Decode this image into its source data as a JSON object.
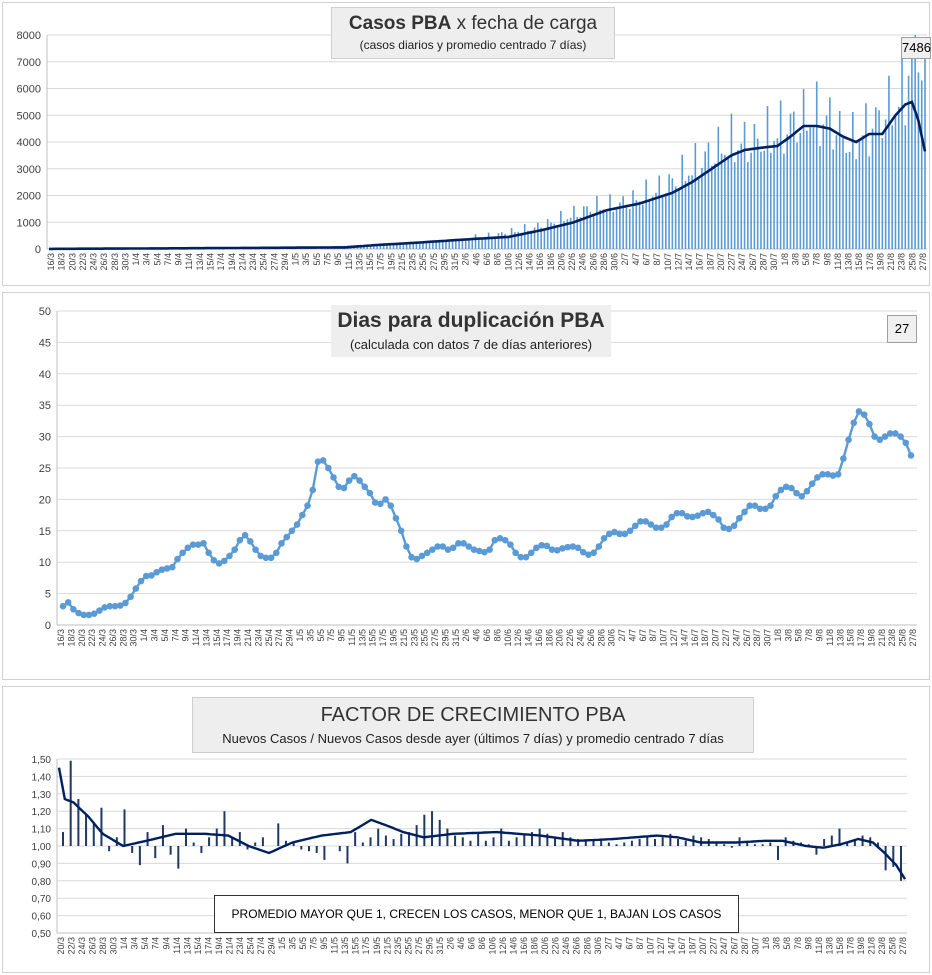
{
  "colors": {
    "bars1": "#5b9bd5",
    "avg": "#002060",
    "line2": "#5b9bd5",
    "bars3": "#1f3864",
    "grid": "#d9d9d9",
    "axis_text": "#404040"
  },
  "chart_data": [
    {
      "type": "bar",
      "title_bold": "Casos  PBA",
      "title_rest": " x fecha  de  carga",
      "subtitle": "(casos diarios y promedio  centrado  7 días)",
      "callout": "7486",
      "ylim": [
        0,
        8000
      ],
      "yticks": [
        "0",
        "1000",
        "2000",
        "3000",
        "4000",
        "5000",
        "6000",
        "7000",
        "8000"
      ],
      "xtick_labels": [
        "16/3",
        "18/3",
        "20/3",
        "22/3",
        "24/3",
        "26/3",
        "28/3",
        "30/3",
        "1/4",
        "3/4",
        "5/4",
        "7/4",
        "9/4",
        "11/4",
        "13/4",
        "15/4",
        "17/4",
        "19/4",
        "21/4",
        "23/4",
        "25/4",
        "27/4",
        "29/4",
        "1/5",
        "3/5",
        "5/5",
        "7/5",
        "9/5",
        "11/5",
        "13/5",
        "15/5",
        "17/5",
        "19/5",
        "21/5",
        "23/5",
        "25/5",
        "27/5",
        "29/5",
        "31/5",
        "2/6",
        "4/6",
        "6/6",
        "8/6",
        "10/6",
        "12/6",
        "14/6",
        "16/6",
        "18/6",
        "20/6",
        "22/6",
        "24/6",
        "26/6",
        "28/6",
        "30/6",
        "2/7",
        "4/7",
        "6/7",
        "8/7",
        "10/7",
        "12/7",
        "14/7",
        "16/7",
        "18/7",
        "20/7",
        "22/7",
        "24/7",
        "26/7",
        "28/7",
        "30/7",
        "1/8",
        "3/8",
        "5/8",
        "7/8",
        "9/8",
        "11/8",
        "13/8",
        "15/8",
        "17/8",
        "19/8",
        "21/8",
        "23/8",
        "25/8",
        "27/8"
      ],
      "series": [
        {
          "name": "casos diarios",
          "kind": "bar",
          "anchors": [
            [
              0,
              4
            ],
            [
              6,
              10
            ],
            [
              14,
              15
            ],
            [
              18,
              25
            ],
            [
              25,
              30
            ],
            [
              32,
              40
            ],
            [
              38,
              45
            ],
            [
              45,
              55
            ],
            [
              52,
              60
            ],
            [
              60,
              75
            ],
            [
              66,
              60
            ],
            [
              72,
              80
            ],
            [
              80,
              90
            ],
            [
              90,
              120
            ],
            [
              96,
              160
            ],
            [
              105,
              230
            ],
            [
              112,
              250
            ],
            [
              118,
              320
            ],
            [
              124,
              380
            ],
            [
              130,
              430
            ],
            [
              136,
              520
            ],
            [
              142,
              650
            ],
            [
              148,
              800
            ],
            [
              154,
              1000
            ],
            [
              160,
              1300
            ],
            [
              166,
              1550
            ],
            [
              172,
              1600
            ],
            [
              178,
              1800
            ],
            [
              184,
              2100
            ],
            [
              190,
              2500
            ],
            [
              196,
              3000
            ],
            [
              202,
              3600
            ],
            [
              208,
              3900
            ],
            [
              214,
              3950
            ],
            [
              220,
              4200
            ],
            [
              226,
              4600
            ],
            [
              232,
              4900
            ],
            [
              238,
              4800
            ],
            [
              244,
              3900
            ],
            [
              250,
              4500
            ],
            [
              256,
              5200
            ],
            [
              260,
              5600
            ],
            [
              264,
              7486
            ],
            [
              267,
              7486
            ]
          ]
        },
        {
          "name": "promedio centrado 7 días",
          "kind": "line",
          "anchors": [
            [
              0,
              5
            ],
            [
              30,
              20
            ],
            [
              60,
              40
            ],
            [
              90,
              60
            ],
            [
              100,
              150
            ],
            [
              110,
              220
            ],
            [
              120,
              300
            ],
            [
              130,
              380
            ],
            [
              140,
              450
            ],
            [
              150,
              700
            ],
            [
              160,
              1000
            ],
            [
              170,
              1450
            ],
            [
              180,
              1700
            ],
            [
              190,
              2100
            ],
            [
              196,
              2500
            ],
            [
              202,
              3000
            ],
            [
              208,
              3500
            ],
            [
              212,
              3700
            ],
            [
              218,
              3800
            ],
            [
              222,
              3850
            ],
            [
              226,
              4200
            ],
            [
              230,
              4600
            ],
            [
              234,
              4600
            ],
            [
              238,
              4500
            ],
            [
              242,
              4200
            ],
            [
              246,
              4000
            ],
            [
              250,
              4300
            ],
            [
              254,
              4300
            ],
            [
              258,
              5000
            ],
            [
              261,
              5400
            ],
            [
              263,
              5500
            ],
            [
              265,
              4800
            ],
            [
              267,
              3650
            ]
          ]
        }
      ]
    },
    {
      "type": "line",
      "title": "Dias para duplicación PBA",
      "subtitle": "(calculada con datos 7 de días anteriores)",
      "callout": "27",
      "ylim": [
        0,
        50
      ],
      "yticks": [
        "0",
        "5",
        "10",
        "15",
        "20",
        "25",
        "30",
        "35",
        "40",
        "45",
        "50"
      ],
      "xtick_labels": [
        "16/3",
        "18/3",
        "20/3",
        "22/3",
        "24/3",
        "26/3",
        "28/3",
        "30/3",
        "1/4",
        "3/4",
        "5/4",
        "7/4",
        "9/4",
        "11/4",
        "13/4",
        "15/4",
        "17/4",
        "19/4",
        "21/4",
        "23/4",
        "25/4",
        "27/4",
        "29/4",
        "1/5",
        "3/5",
        "5/5",
        "7/5",
        "9/5",
        "11/5",
        "13/5",
        "15/5",
        "17/5",
        "19/5",
        "21/5",
        "23/5",
        "25/5",
        "27/5",
        "29/5",
        "31/5",
        "2/6",
        "4/6",
        "6/6",
        "8/6",
        "10/6",
        "12/6",
        "14/6",
        "16/6",
        "18/6",
        "20/6",
        "22/6",
        "24/6",
        "26/6",
        "28/6",
        "30/6",
        "2/7",
        "4/7",
        "6/7",
        "8/7",
        "10/7",
        "12/7",
        "14/7",
        "16/7",
        "18/7",
        "20/7",
        "22/7",
        "24/7",
        "26/7",
        "28/7",
        "30/7",
        "1/8",
        "3/8",
        "5/8",
        "7/8",
        "9/8",
        "11/8",
        "13/8",
        "15/8",
        "17/8",
        "19/8",
        "21/8",
        "23/8",
        "25/8",
        "27/8"
      ],
      "series": [
        {
          "name": "dias para duplicacion",
          "values": [
            3,
            3.6,
            2.5,
            1.9,
            1.6,
            1.6,
            1.8,
            2.3,
            2.8,
            3,
            3,
            3.1,
            3.5,
            4.5,
            5.8,
            7,
            7.8,
            7.9,
            8.4,
            8.8,
            9,
            9.2,
            10.5,
            11.5,
            12.3,
            12.8,
            12.8,
            13,
            11.5,
            10.3,
            9.8,
            10.2,
            11,
            12,
            13.5,
            14.3,
            13.3,
            12,
            11,
            10.7,
            10.7,
            11.5,
            13,
            14,
            15,
            16,
            17.5,
            19,
            21.5,
            26,
            26.2,
            25,
            23.5,
            22,
            21.8,
            23,
            23.7,
            23,
            22,
            21,
            19.5,
            19.3,
            20,
            19,
            17,
            15,
            12.5,
            10.8,
            10.5,
            11,
            11.5,
            12,
            12.5,
            12.5,
            12,
            12.3,
            13,
            13,
            12.5,
            12,
            11.8,
            11.6,
            12,
            13.5,
            13.8,
            13.5,
            12.8,
            11.5,
            10.8,
            10.8,
            11.5,
            12.3,
            12.7,
            12.6,
            12,
            11.9,
            12.2,
            12.4,
            12.5,
            12.3,
            11.6,
            11.2,
            11.5,
            12.5,
            13.8,
            14.5,
            14.8,
            14.5,
            14.5,
            15,
            15.8,
            16.5,
            16.5,
            16,
            15.5,
            15.5,
            16,
            17.2,
            17.8,
            17.8,
            17.3,
            17.2,
            17.4,
            17.8,
            18,
            17.5,
            16.8,
            15.5,
            15.3,
            15.8,
            17,
            18,
            19,
            19,
            18.5,
            18.5,
            19,
            20.5,
            21.5,
            22,
            21.8,
            21,
            20.5,
            21.3,
            22.5,
            23.5,
            24,
            24,
            23.8,
            24,
            26.5,
            29.5,
            32.2,
            34,
            33.5,
            32,
            30,
            29.5,
            30,
            30.5,
            30.5,
            30,
            29,
            27
          ]
        }
      ]
    },
    {
      "type": "bar",
      "title": "FACTOR DE CRECIMIENTO PBA",
      "subtitle": "Nuevos Casos  / Nuevos Casos desde ayer (últimos 7 días) y promedio  centrado  7 días",
      "note": "PROMEDIO MAYOR QUE 1, CRECEN LOS CASOS, MENOR QUE 1, BAJAN LOS CASOS",
      "ylim": [
        0.5,
        1.5
      ],
      "yticks": [
        "0,50",
        "0,60",
        "0,70",
        "0,80",
        "0,90",
        "1,00",
        "1,10",
        "1,20",
        "1,30",
        "1,40",
        "1,50"
      ],
      "xtick_labels": [
        "20/3",
        "22/3",
        "24/3",
        "26/3",
        "28/3",
        "30/3",
        "1/4",
        "3/4",
        "5/4",
        "7/4",
        "9/4",
        "11/4",
        "13/4",
        "15/4",
        "17/4",
        "19/4",
        "21/4",
        "23/4",
        "25/4",
        "27/4",
        "29/4",
        "1/5",
        "3/5",
        "5/5",
        "7/5",
        "9/5",
        "11/5",
        "13/5",
        "15/5",
        "17/5",
        "19/5",
        "21/5",
        "23/5",
        "25/5",
        "27/5",
        "29/5",
        "31/5",
        "2/6",
        "4/6",
        "6/6",
        "8/6",
        "10/6",
        "12/6",
        "14/6",
        "16/6",
        "18/6",
        "20/6",
        "22/6",
        "24/6",
        "26/6",
        "28/6",
        "30/6",
        "2/7",
        "4/7",
        "6/7",
        "8/7",
        "10/7",
        "12/7",
        "14/7",
        "16/7",
        "18/7",
        "20/7",
        "22/7",
        "24/7",
        "26/7",
        "28/7",
        "30/7",
        "1/8",
        "3/8",
        "5/8",
        "7/8",
        "9/8",
        "11/8",
        "13/8",
        "15/8",
        "17/8",
        "19/8",
        "21/8",
        "23/8",
        "25/8",
        "27/8"
      ],
      "series": [
        {
          "name": "factor diario",
          "kind": "bar",
          "values": [
            1.08,
            1.49,
            1.27,
            1.18,
            1.13,
            1.22,
            0.97,
            1.05,
            1.21,
            0.96,
            0.89,
            1.08,
            0.93,
            1.12,
            0.95,
            0.87,
            1.1,
            1.02,
            0.96,
            1.05,
            1.1,
            1.2,
            1.05,
            1.08,
            0.98,
            1.02,
            1.05,
            1.0,
            1.13,
            1.03,
            1.02,
            0.98,
            0.97,
            0.96,
            0.92,
            1.0,
            0.97,
            0.9,
            1.08,
            1.02,
            1.05,
            1.1,
            1.06,
            1.04,
            1.07,
            1.08,
            1.12,
            1.18,
            1.2,
            1.15,
            1.1,
            1.06,
            1.05,
            1.03,
            1.08,
            1.03,
            1.05,
            1.1,
            1.03,
            1.05,
            1.07,
            1.08,
            1.1,
            1.07,
            1.05,
            1.08,
            1.05,
            1.04,
            1.03,
            1.03,
            1.04,
            1.02,
            1.01,
            1.02,
            1.03,
            1.04,
            1.06,
            1.04,
            1.05,
            1.07,
            1.04,
            1.03,
            1.06,
            1.05,
            1.04,
            1.02,
            1.01,
            0.99,
            1.05,
            1.02,
            1.01,
            1.01,
            1.02,
            0.92,
            1.05,
            1.03,
            1.02,
            1.01,
            0.95,
            1.04,
            1.06,
            1.1,
            1.02,
            1.03,
            1.06,
            1.05,
            1.02,
            0.86,
            0.88,
            0.8
          ]
        },
        {
          "name": "promedio centrado 7 días",
          "kind": "line",
          "anchors": [
            [
              0,
              1.45
            ],
            [
              2,
              1.27
            ],
            [
              5,
              1.25
            ],
            [
              10,
              1.17
            ],
            [
              15,
              1.07
            ],
            [
              22,
              1.0
            ],
            [
              30,
              1.03
            ],
            [
              40,
              1.07
            ],
            [
              50,
              1.07
            ],
            [
              58,
              1.06
            ],
            [
              65,
              1.0
            ],
            [
              72,
              0.96
            ],
            [
              80,
              1.02
            ],
            [
              90,
              1.06
            ],
            [
              100,
              1.08
            ],
            [
              107,
              1.15
            ],
            [
              112,
              1.12
            ],
            [
              118,
              1.08
            ],
            [
              125,
              1.05
            ],
            [
              135,
              1.07
            ],
            [
              150,
              1.08
            ],
            [
              165,
              1.06
            ],
            [
              178,
              1.03
            ],
            [
              190,
              1.04
            ],
            [
              205,
              1.06
            ],
            [
              212,
              1.05
            ],
            [
              220,
              1.02
            ],
            [
              232,
              1.02
            ],
            [
              242,
              1.03
            ],
            [
              248,
              1.03
            ],
            [
              256,
              1.0
            ],
            [
              262,
              0.99
            ],
            [
              268,
              1.01
            ],
            [
              274,
              1.04
            ],
            [
              279,
              1.02
            ],
            [
              283,
              0.96
            ],
            [
              287,
              0.89
            ],
            [
              290,
              0.81
            ]
          ]
        }
      ]
    }
  ]
}
